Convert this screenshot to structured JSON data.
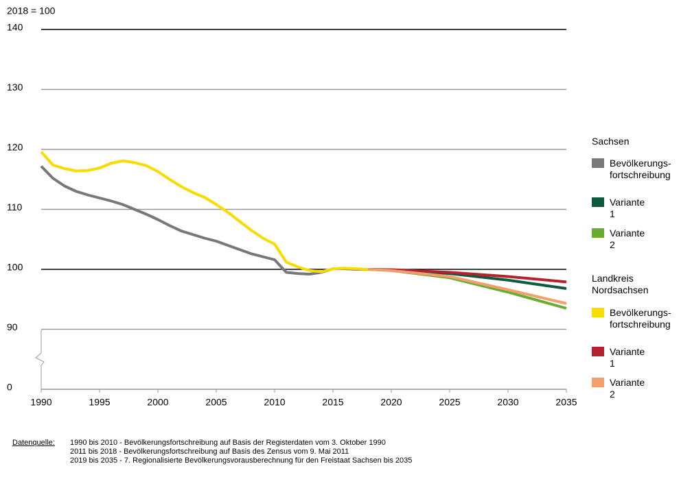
{
  "chart_data": {
    "type": "line",
    "y_unit": "2018 = 100",
    "xlim": [
      1990,
      2035
    ],
    "xticks": [
      1990,
      1995,
      2000,
      2005,
      2010,
      2015,
      2020,
      2025,
      2030,
      2035
    ],
    "ylim": [
      0,
      140
    ],
    "ybreak": [
      0,
      80
    ],
    "yticks": [
      0,
      90,
      100,
      110,
      120,
      130,
      140
    ],
    "grid_colors": [
      "#999999",
      "#999999",
      "#000000",
      "#999999",
      "#999999",
      "#999999",
      "#000000"
    ],
    "series_groups": [
      {
        "title": "Sachsen",
        "series": [
          {
            "name": "Bevölkerungs-\nfortschreibung",
            "color": "#787878",
            "x": [
              1990,
              1991,
              1992,
              1993,
              1994,
              1995,
              1996,
              1997,
              1998,
              1999,
              2000,
              2001,
              2002,
              2003,
              2004,
              2005,
              2006,
              2007,
              2008,
              2009,
              2010,
              2011,
              2012,
              2013,
              2014,
              2015,
              2016,
              2017,
              2018
            ],
            "values": [
              117.2,
              115.2,
              113.9,
              113.0,
              112.4,
              111.9,
              111.4,
              110.8,
              110.0,
              109.2,
              108.3,
              107.3,
              106.4,
              105.8,
              105.2,
              104.7,
              104.0,
              103.3,
              102.6,
              102.1,
              101.6,
              99.5,
              99.3,
              99.2,
              99.5,
              100.1,
              100.1,
              100.0,
              100.0
            ]
          },
          {
            "name": "Variante 1",
            "color": "#0f5a3c",
            "x": [
              2018,
              2020,
              2025,
              2030,
              2035
            ],
            "values": [
              100,
              99.9,
              99.3,
              98.2,
              96.8
            ]
          },
          {
            "name": "Variante 2",
            "color": "#6aac2e",
            "x": [
              2018,
              2020,
              2025,
              2030,
              2035
            ],
            "values": [
              100,
              99.8,
              98.6,
              96.2,
              93.5
            ]
          }
        ]
      },
      {
        "title": "Landkreis\nNordsachsen",
        "series": [
          {
            "name": "Bevölkerungs-\nfortschreibung",
            "color": "#f8dc00",
            "x": [
              1990,
              1991,
              1992,
              1993,
              1994,
              1995,
              1996,
              1997,
              1998,
              1999,
              2000,
              2001,
              2002,
              2003,
              2004,
              2005,
              2006,
              2007,
              2008,
              2009,
              2010,
              2011,
              2012,
              2013,
              2014,
              2015,
              2016,
              2017,
              2018
            ],
            "values": [
              119.6,
              117.4,
              116.8,
              116.4,
              116.5,
              116.9,
              117.7,
              118.1,
              117.8,
              117.3,
              116.3,
              115.0,
              113.8,
              112.8,
              112.0,
              110.8,
              109.5,
              108.0,
              106.5,
              105.2,
              104.2,
              101.2,
              100.4,
              99.8,
              99.6,
              100.1,
              100.2,
              100.1,
              100.0
            ]
          },
          {
            "name": "Variante 1",
            "color": "#b5222f",
            "x": [
              2018,
              2020,
              2025,
              2030,
              2035
            ],
            "values": [
              100,
              99.95,
              99.5,
              98.8,
              97.9
            ]
          },
          {
            "name": "Variante 2",
            "color": "#f0a070",
            "x": [
              2018,
              2020,
              2025,
              2030,
              2035
            ],
            "values": [
              100,
              99.8,
              98.8,
              96.6,
              94.3
            ]
          }
        ]
      }
    ],
    "source": {
      "label": "Datenquelle:",
      "lines": [
        "1990 bis 2010 - Bevölkerungsfortschreibung auf Basis der Registerdaten vom 3. Oktober 1990",
        "2011 bis 2018 - Bevölkerungsfortschreibung auf Basis des Zensus vom 9. Mai 2011",
        "2019 bis 2035 - 7. Regionalisierte Bevölkerungsvorausberechnung für den Freistaat Sachsen bis 2035"
      ]
    }
  }
}
